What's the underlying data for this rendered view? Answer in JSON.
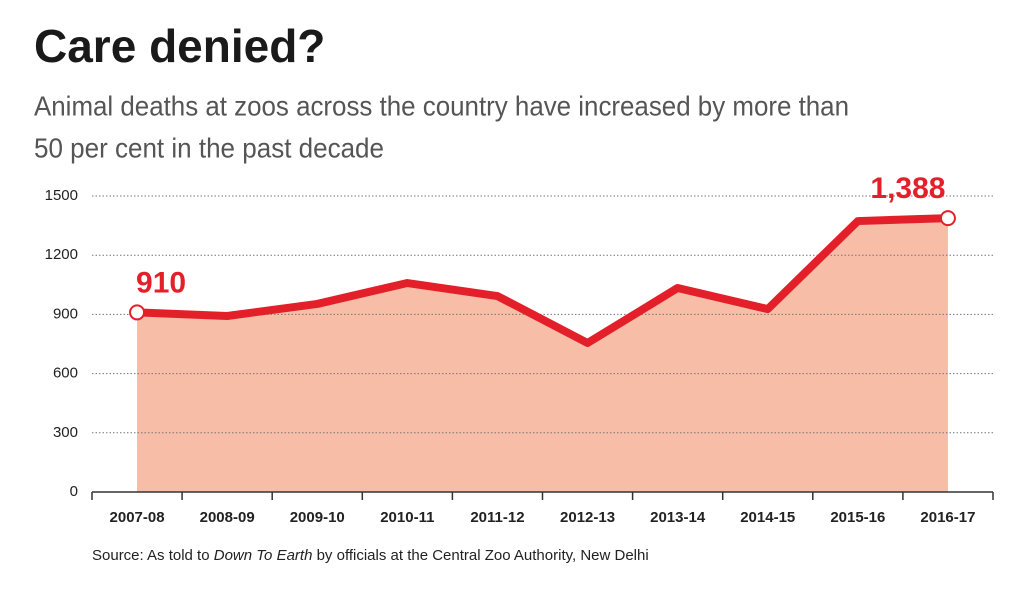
{
  "chart_data": {
    "type": "area",
    "title": "Care denied?",
    "subtitle": [
      "Animal deaths at zoos across the country have increased by more than",
      "50 per cent in the past decade"
    ],
    "categories": [
      "2007-08",
      "2008-09",
      "2009-10",
      "2010-11",
      "2011-12",
      "2012-13",
      "2013-14",
      "2014-15",
      "2015-16",
      "2016-17"
    ],
    "values": [
      910,
      892,
      953,
      1059,
      993,
      755,
      1034,
      927,
      1373,
      1388
    ],
    "value_labels": [
      "910",
      null,
      null,
      null,
      null,
      null,
      null,
      null,
      null,
      "1,388"
    ],
    "line_color": "#e3202a",
    "fill_color": "#f7bda6",
    "ylim": [
      0,
      1500
    ],
    "yticks": [
      0,
      300,
      600,
      900,
      1200,
      1500
    ],
    "grid": true,
    "source": [
      "Source: As told to ",
      "Down To Earth",
      " by officials at the Central Zoo Authority, New Delhi"
    ]
  }
}
